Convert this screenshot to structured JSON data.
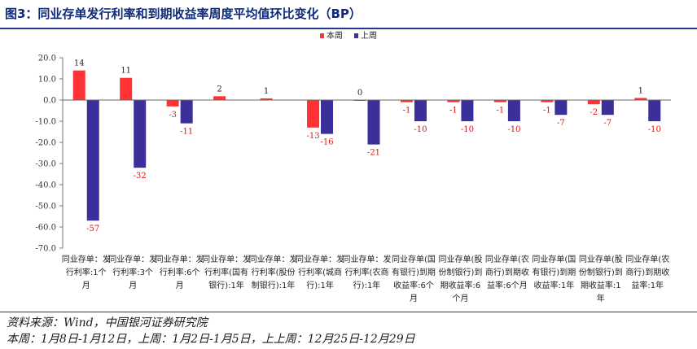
{
  "title": "图3：同业存单发行利率和到期收益率周度平均值环比变化（BP）",
  "source_note": "资料来源：Wind，中国银河证券研究院",
  "period_note": "本周：1月8日-1月12日，上周：1月2日-1月5日，上上周：12月25日-12月29日",
  "colors": {
    "this_week": "#ff3333",
    "last_week": "#3b2f9a",
    "title": "#0e2a7a"
  },
  "chart_data": {
    "type": "bar",
    "title": "",
    "xlabel": "",
    "ylabel": "",
    "ylim": [
      -70,
      20
    ],
    "yticks": [
      "20.0",
      "10.0",
      "0.0",
      "-10.0",
      "-20.0",
      "-30.0",
      "-40.0",
      "-50.0",
      "-60.0",
      "-70.0"
    ],
    "grid": false,
    "legend_position": "top-center",
    "categories": [
      [
        "同业存单：发",
        "行利率:1个",
        "月"
      ],
      [
        "同业存单：发",
        "行利率:3个",
        "月"
      ],
      [
        "同业存单：发",
        "行利率:6个",
        "月"
      ],
      [
        "同业存单：发",
        "行利率(国有",
        "银行):1年"
      ],
      [
        "同业存单：发",
        "行利率(股份",
        "制银行):1年"
      ],
      [
        "同业存单：发",
        "行利率(城商",
        "行):1年"
      ],
      [
        "同业存单：发",
        "行利率(农商",
        "行):1年"
      ],
      [
        "同业存单(国",
        "有银行)到期",
        "收益率:6个",
        "月"
      ],
      [
        "同业存单(股",
        "份制银行)到",
        "期收益率:6",
        "个月"
      ],
      [
        "同业存单(农",
        "商行)到期收",
        "益率:6个月"
      ],
      [
        "同业存单(国",
        "有银行)到期",
        "收益率:1年"
      ],
      [
        "同业存单(股",
        "份制银行)到",
        "期收益率:1",
        "年"
      ],
      [
        "同业存单(农",
        "商行)到期收",
        "益率:1年"
      ]
    ],
    "series": [
      {
        "name": "本周",
        "values": [
          14,
          10.5,
          -3,
          1.8,
          0.8,
          -13,
          0,
          -1,
          -1,
          -1,
          -1,
          -2,
          1
        ],
        "labels": [
          "14",
          "11",
          "-3",
          "2",
          "1",
          "-13",
          "0",
          "-1",
          "-1",
          "-1",
          "-1",
          "-2",
          "1"
        ]
      },
      {
        "name": "上周",
        "values": [
          -57,
          -32,
          -11,
          null,
          null,
          -16,
          -21,
          -10,
          -10,
          -10,
          -7,
          -7,
          -10
        ],
        "labels": [
          "-57",
          "-32",
          "-11",
          "",
          "",
          "-16",
          "-21",
          "-10",
          "-10",
          "-10",
          "-7",
          "-7",
          "-10"
        ]
      }
    ]
  }
}
